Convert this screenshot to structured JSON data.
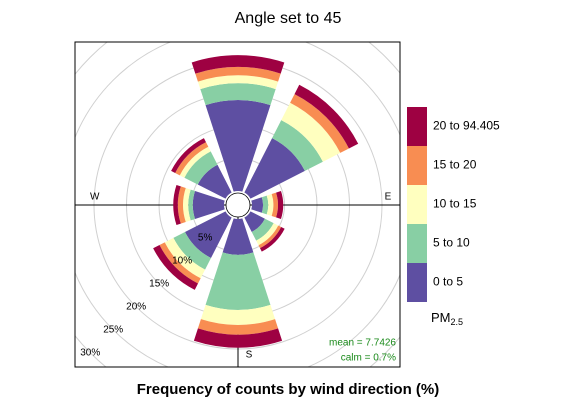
{
  "chart_data": {
    "type": "windrose",
    "title": "Angle set to 45",
    "xlabel": "Frequency of counts by wind direction (%)",
    "direction_labels": [
      "W",
      "E",
      "S"
    ],
    "x": [
      0,
      45,
      90,
      135,
      180,
      225,
      270,
      315
    ],
    "series": [
      {
        "name": "0 to 5",
        "color": "#5E4FA2",
        "values": [
          14,
          9.4,
          1.7,
          2.5,
          5.5,
          7,
          4.8,
          4.8
        ]
      },
      {
        "name": "5 to 10",
        "color": "#88CFA4",
        "values": [
          2.6,
          3.1,
          0.8,
          1.5,
          8.5,
          2,
          0.7,
          2.3
        ]
      },
      {
        "name": "10 to 15",
        "color": "#FFFFBF",
        "values": [
          1.2,
          3,
          0.8,
          0.8,
          2.3,
          1.5,
          0.8,
          0.8
        ]
      },
      {
        "name": "15 to 20",
        "color": "#F88D52",
        "values": [
          1.3,
          1.5,
          0.7,
          0.5,
          1.5,
          0.9,
          0.8,
          0.8
        ]
      },
      {
        "name": "20 to 94.405",
        "color": "#9E0142",
        "values": [
          1.8,
          1.6,
          0.8,
          0.6,
          2,
          1.1,
          0.7,
          0.7
        ]
      }
    ],
    "rlim": [
      0,
      30
    ],
    "rticks": [
      {
        "value": 5,
        "label": "5%"
      },
      {
        "value": 10,
        "label": "10%"
      },
      {
        "value": 15,
        "label": "15%"
      },
      {
        "value": 20,
        "label": "20%"
      },
      {
        "value": 25,
        "label": "25%"
      },
      {
        "value": 30,
        "label": "30%"
      }
    ],
    "grid": true,
    "legend_title": {
      "main": "PM",
      "sub": "2.5"
    },
    "annotations": [
      "mean = 7.7426",
      "calm = 0.7%"
    ]
  }
}
